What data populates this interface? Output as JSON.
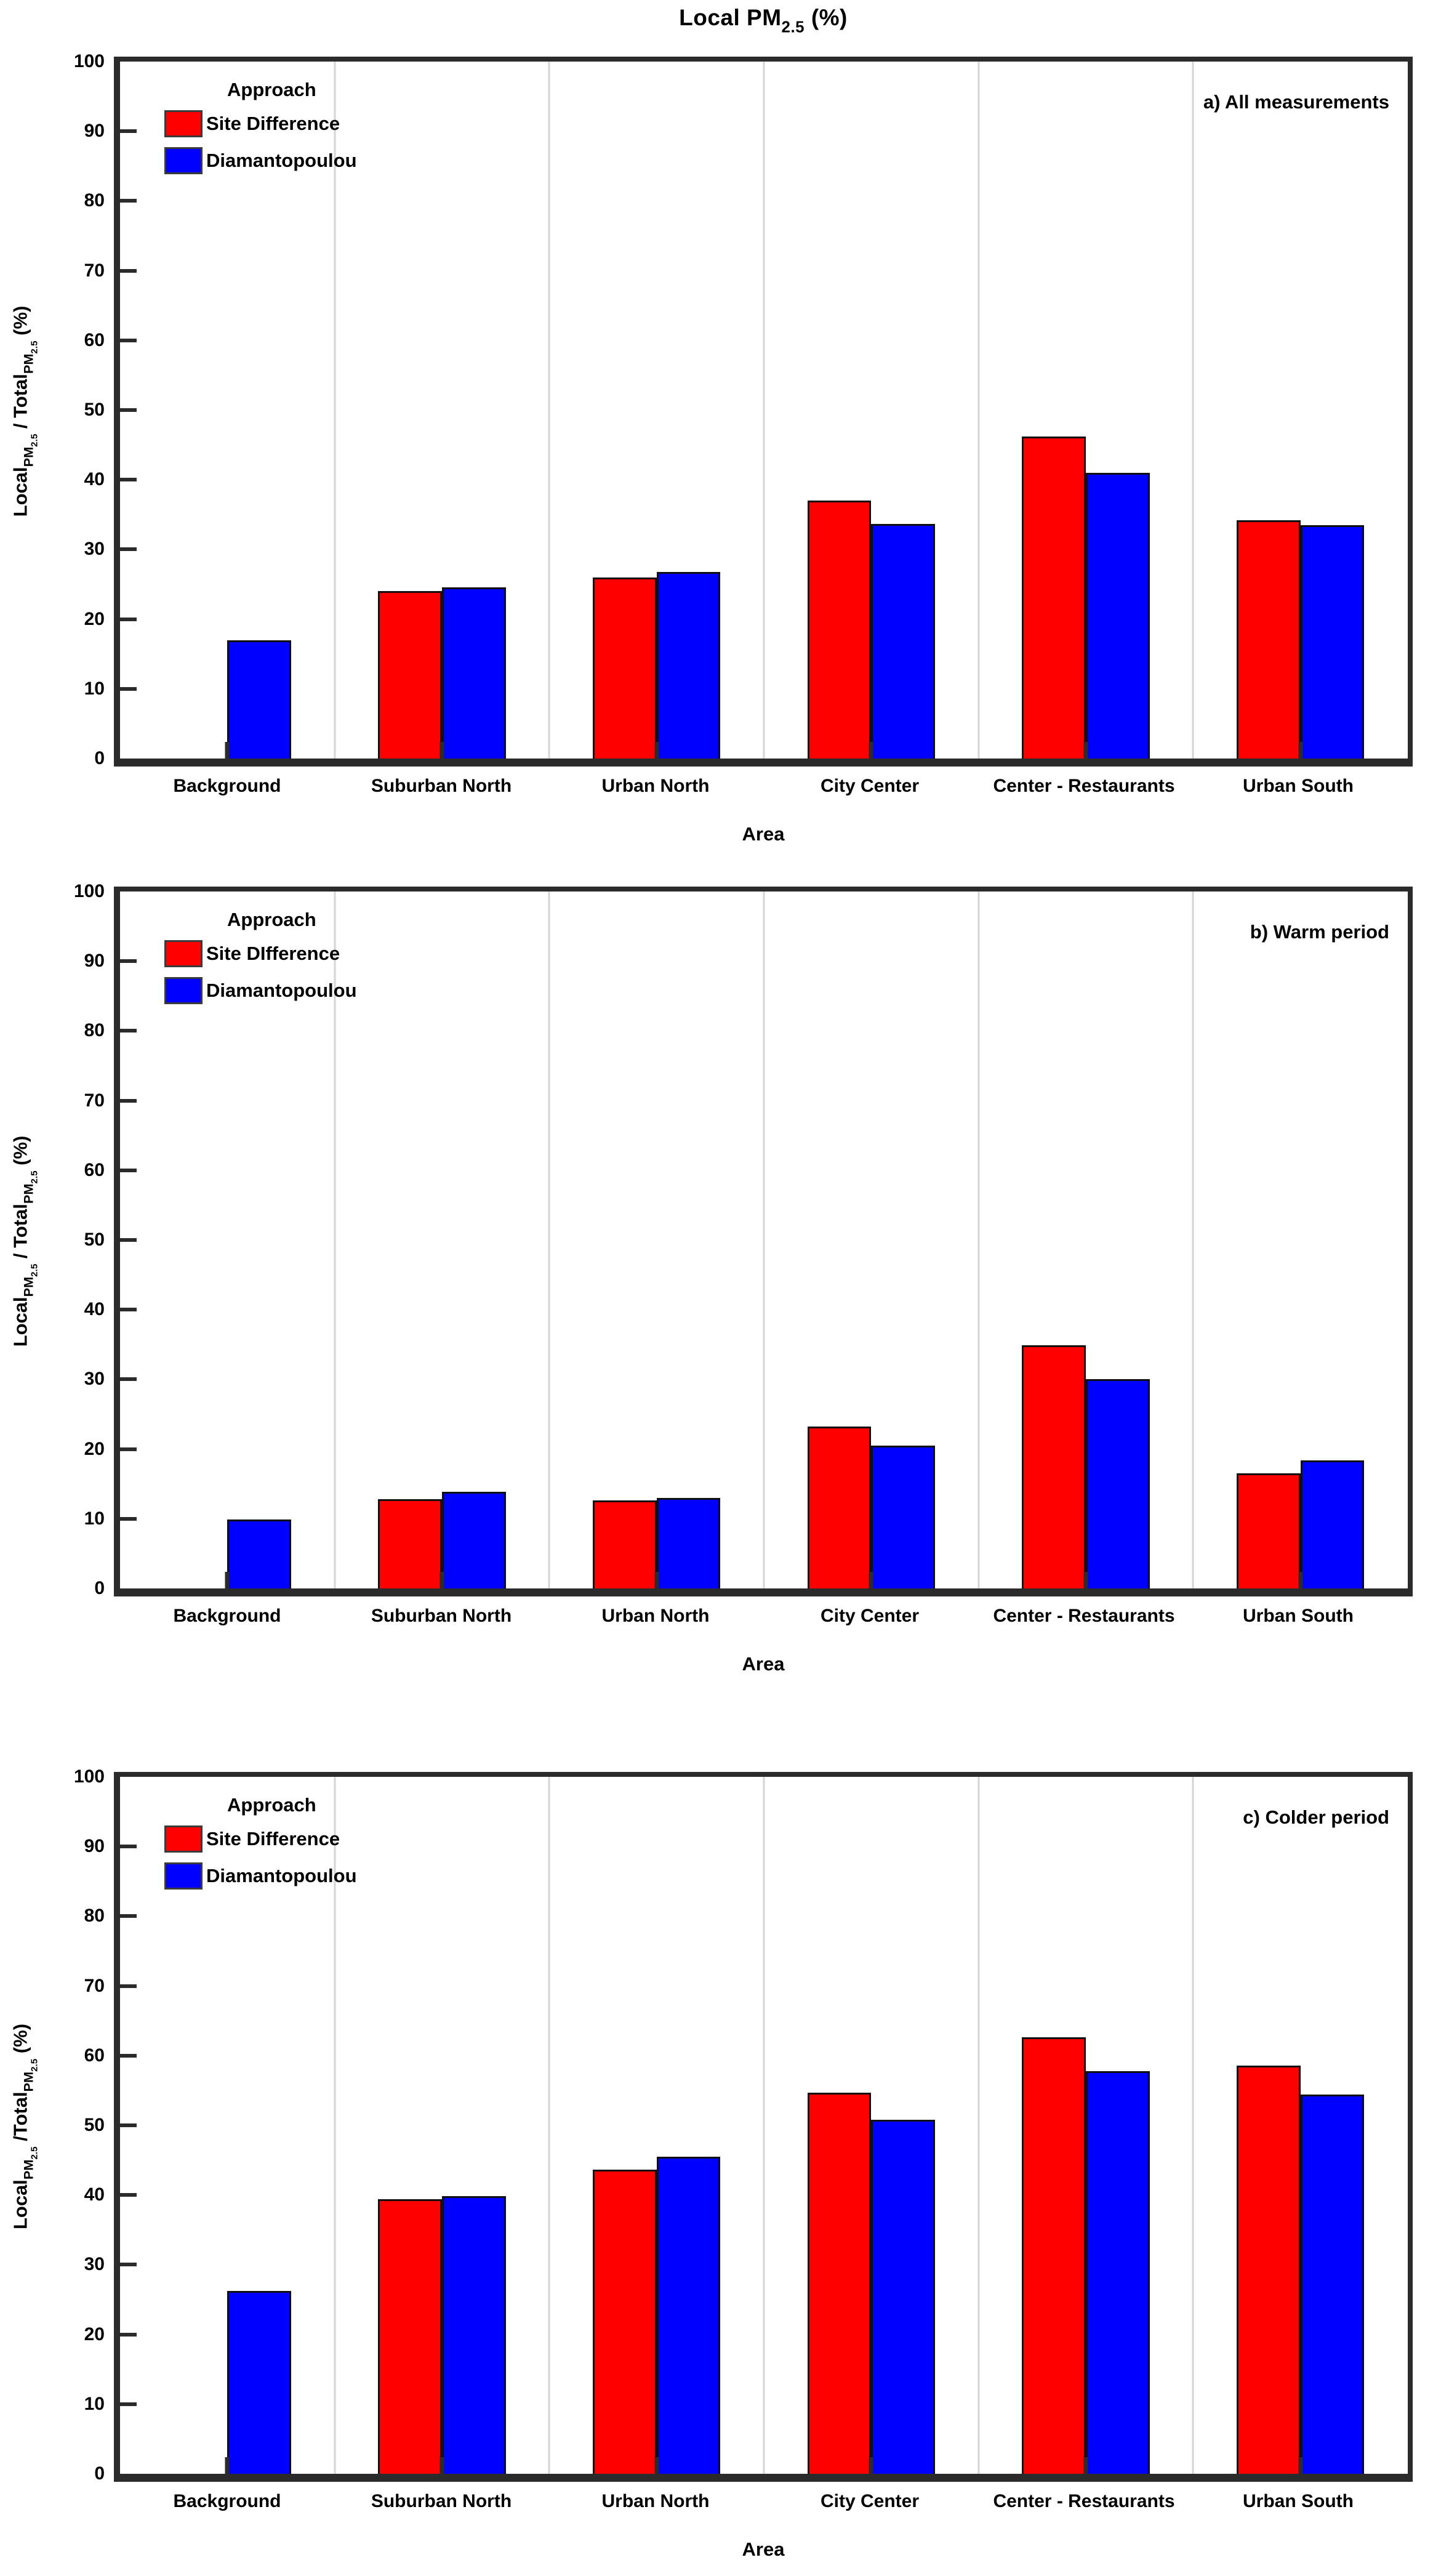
{
  "title": {
    "main": "Local PM",
    "sub": "2.5",
    "suffix": " (%)"
  },
  "xlabel": "Area",
  "colors": {
    "site_difference": "#ff0000",
    "diamantopoulou": "#0000ff",
    "grid": "#d4d4d4",
    "frame": "#2b2b2b",
    "text": "#000000"
  },
  "panels": [
    {
      "annotation": "a) All measurements",
      "legend": {
        "title": "Approach",
        "red": "Site Difference",
        "blue": "Diamantopoulou"
      },
      "ylabel": {
        "p1": "Local",
        "s1": "PM",
        "ss1": "2.5",
        "p2": " / Total",
        "s2": "PM",
        "ss2": "2.5",
        "p3": " (%)"
      }
    },
    {
      "annotation": "b) Warm period",
      "legend": {
        "title": "Approach",
        "red": "Site DIfference",
        "blue": "Diamantopoulou"
      },
      "ylabel": {
        "p1": "Local",
        "s1": "PM",
        "ss1": "2.5",
        "p2": " / Total",
        "s2": "PM",
        "ss2": "2.5",
        "p3": " (%)"
      }
    },
    {
      "annotation": "c) Colder period",
      "legend": {
        "title": "Approach",
        "red": "Site Difference",
        "blue": "Diamantopoulou"
      },
      "ylabel": {
        "p1": "Local",
        "s1": "PM",
        "ss1": "2.5",
        "p2": " /Total",
        "s2": "PM",
        "ss2": "2.5",
        "p3": " (%)"
      }
    }
  ],
  "chart_data": [
    {
      "type": "bar",
      "panel_label": "a) All measurements",
      "title": "Local PM2.5 (%)",
      "categories": [
        "Background",
        "Suburban North",
        "Urban North",
        "City Center",
        "Center - Restaurants",
        "Urban South"
      ],
      "series": [
        {
          "name": "Site Difference",
          "color": "#ff0000",
          "values": [
            null,
            24.0,
            26.0,
            37.0,
            46.2,
            34.2
          ]
        },
        {
          "name": "Diamantopoulou",
          "color": "#0000ff",
          "values": [
            17.0,
            24.6,
            26.8,
            33.7,
            41.0,
            33.5
          ]
        }
      ],
      "xlabel": "Area",
      "ylabel": "Local PM2.5 / Total PM2.5 (%)",
      "ylim": [
        0,
        100
      ],
      "ytick_step": 10,
      "legend_title": "Approach",
      "legend_position": "top-left",
      "grid": "vertical-category-boundaries"
    },
    {
      "type": "bar",
      "panel_label": "b) Warm period",
      "categories": [
        "Background",
        "Suburban North",
        "Urban North",
        "City Center",
        "Center - Restaurants",
        "Urban South"
      ],
      "series": [
        {
          "name": "Site DIfference",
          "color": "#ff0000",
          "values": [
            null,
            12.8,
            12.6,
            23.2,
            34.9,
            16.5
          ]
        },
        {
          "name": "Diamantopoulou",
          "color": "#0000ff",
          "values": [
            9.9,
            13.9,
            13.0,
            20.5,
            30.0,
            18.4
          ]
        }
      ],
      "xlabel": "Area",
      "ylabel": "Local PM2.5 / Total PM2.5 (%)",
      "ylim": [
        0,
        100
      ],
      "ytick_step": 10,
      "legend_title": "Approach",
      "legend_position": "top-left",
      "grid": "vertical-category-boundaries"
    },
    {
      "type": "bar",
      "panel_label": "c) Colder period",
      "categories": [
        "Background",
        "Suburban North",
        "Urban North",
        "City Center",
        "Center - Restaurants",
        "Urban South"
      ],
      "series": [
        {
          "name": "Site Difference",
          "color": "#ff0000",
          "values": [
            null,
            39.4,
            43.6,
            54.7,
            62.6,
            58.6
          ]
        },
        {
          "name": "Diamantopoulou",
          "color": "#0000ff",
          "values": [
            26.2,
            39.8,
            45.5,
            50.8,
            57.8,
            54.4
          ]
        }
      ],
      "xlabel": "Area",
      "ylabel": "Local PM2.5 /Total PM2.5 (%)",
      "ylim": [
        0,
        100
      ],
      "ytick_step": 10,
      "legend_title": "Approach",
      "legend_position": "top-left",
      "grid": "vertical-category-boundaries"
    }
  ]
}
